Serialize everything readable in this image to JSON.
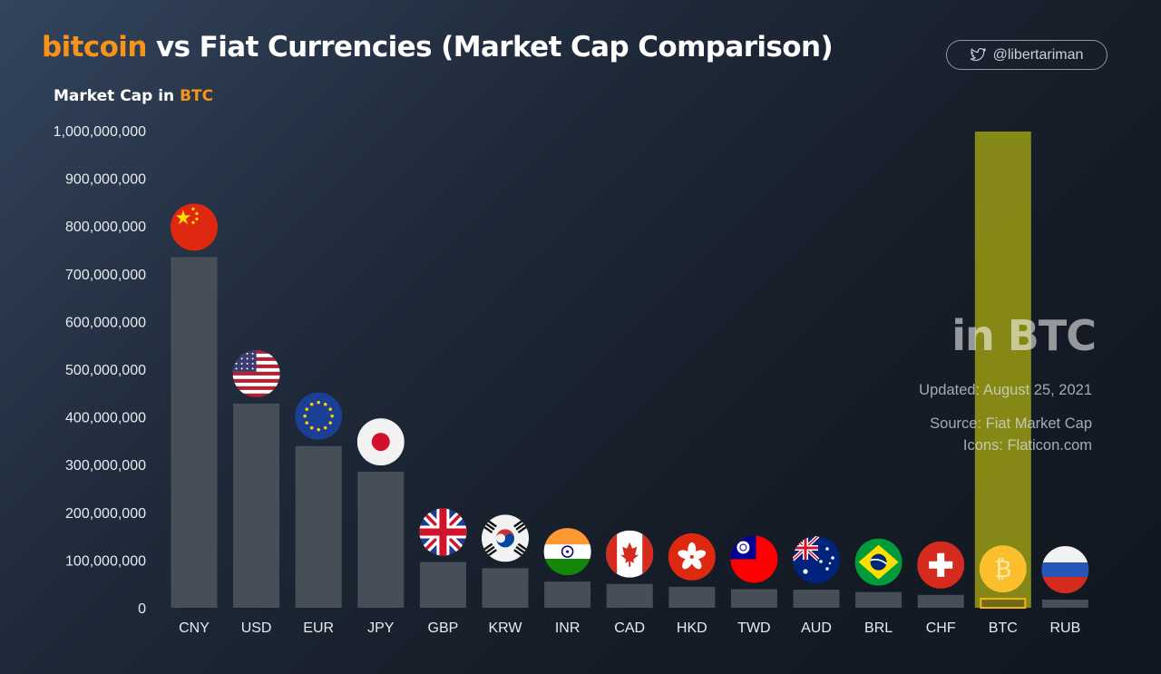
{
  "title": {
    "accent": "bitcoin",
    "rest": " vs Fiat Currencies (Market Cap Comparison)"
  },
  "social": {
    "icon": "twitter-bird-icon",
    "handle": "@libertariman"
  },
  "axis_label": {
    "prefix": "Market Cap in ",
    "accent": "BTC"
  },
  "side_panel": {
    "headline": "in BTC",
    "updated": "Updated: August 25, 2021",
    "source": "Source: Fiat Market Cap",
    "icons": "Icons: Flaticon.com"
  },
  "colors": {
    "accent": "#f7931a",
    "bar": "#464e58",
    "highlight": "#9a9b14"
  },
  "chart_data": {
    "type": "bar",
    "title": "bitcoin vs Fiat Currencies (Market Cap Comparison)",
    "xlabel": "",
    "ylabel": "Market Cap in BTC",
    "ylim": [
      0,
      1000000000
    ],
    "yticks": [
      {
        "value": 0,
        "label": "0"
      },
      {
        "value": 100000000,
        "label": "100,000,000"
      },
      {
        "value": 200000000,
        "label": "200,000,000"
      },
      {
        "value": 300000000,
        "label": "300,000,000"
      },
      {
        "value": 400000000,
        "label": "400,000,000"
      },
      {
        "value": 500000000,
        "label": "500,000,000"
      },
      {
        "value": 600000000,
        "label": "600,000,000"
      },
      {
        "value": 700000000,
        "label": "700,000,000"
      },
      {
        "value": 800000000,
        "label": "800,000,000"
      },
      {
        "value": 900000000,
        "label": "900,000,000"
      },
      {
        "value": 1000000000,
        "label": "1,000,000,000"
      }
    ],
    "categories": [
      "CNY",
      "USD",
      "EUR",
      "JPY",
      "GBP",
      "KRW",
      "INR",
      "CAD",
      "HKD",
      "TWD",
      "AUD",
      "BRL",
      "CHF",
      "BTC",
      "RUB"
    ],
    "values": [
      735000000,
      428000000,
      339000000,
      285000000,
      96000000,
      83000000,
      55000000,
      50000000,
      44000000,
      39000000,
      38000000,
      33000000,
      27000000,
      18800000,
      17000000
    ],
    "icons": [
      "china-flag-icon",
      "usa-flag-icon",
      "eu-flag-icon",
      "japan-flag-icon",
      "uk-flag-icon",
      "south-korea-flag-icon",
      "india-flag-icon",
      "canada-flag-icon",
      "hong-kong-flag-icon",
      "taiwan-flag-icon",
      "australia-flag-icon",
      "brazil-flag-icon",
      "switzerland-flag-icon",
      "bitcoin-icon",
      "russia-flag-icon"
    ],
    "highlight": "BTC",
    "grid": false
  }
}
